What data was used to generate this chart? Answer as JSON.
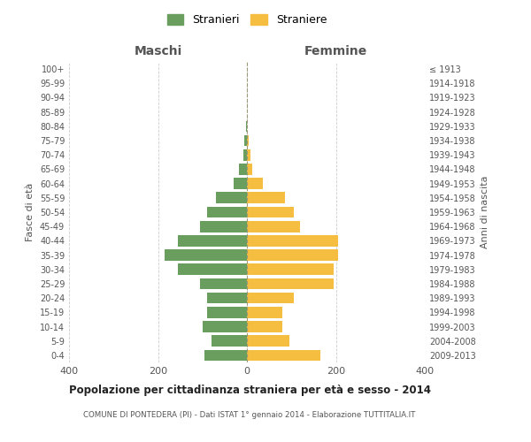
{
  "age_groups": [
    "0-4",
    "5-9",
    "10-14",
    "15-19",
    "20-24",
    "25-29",
    "30-34",
    "35-39",
    "40-44",
    "45-49",
    "50-54",
    "55-59",
    "60-64",
    "65-69",
    "70-74",
    "75-79",
    "80-84",
    "85-89",
    "90-94",
    "95-99",
    "100+"
  ],
  "birth_years": [
    "2009-2013",
    "2004-2008",
    "1999-2003",
    "1994-1998",
    "1989-1993",
    "1984-1988",
    "1979-1983",
    "1974-1978",
    "1969-1973",
    "1964-1968",
    "1959-1963",
    "1954-1958",
    "1949-1953",
    "1944-1948",
    "1939-1943",
    "1934-1938",
    "1929-1933",
    "1924-1928",
    "1919-1923",
    "1914-1918",
    "≤ 1913"
  ],
  "maschi": [
    95,
    80,
    100,
    90,
    90,
    105,
    155,
    185,
    155,
    105,
    90,
    70,
    30,
    18,
    8,
    5,
    2,
    0,
    0,
    0,
    0
  ],
  "femmine": [
    165,
    95,
    80,
    80,
    105,
    195,
    195,
    205,
    205,
    120,
    105,
    85,
    35,
    12,
    8,
    3,
    0,
    0,
    0,
    0,
    0
  ],
  "color_maschi": "#6a9e5f",
  "color_femmine": "#f5be41",
  "title": "Popolazione per cittadinanza straniera per età e sesso - 2014",
  "subtitle": "COMUNE DI PONTEDERA (PI) - Dati ISTAT 1° gennaio 2014 - Elaborazione TUTTITALIA.IT",
  "header_left": "Maschi",
  "header_right": "Femmine",
  "ylabel_left": "Fasce di età",
  "ylabel_right": "Anni di nascita",
  "xlim": 400,
  "legend_maschi": "Stranieri",
  "legend_femmine": "Straniere",
  "bg_color": "#ffffff",
  "grid_color": "#cccccc"
}
